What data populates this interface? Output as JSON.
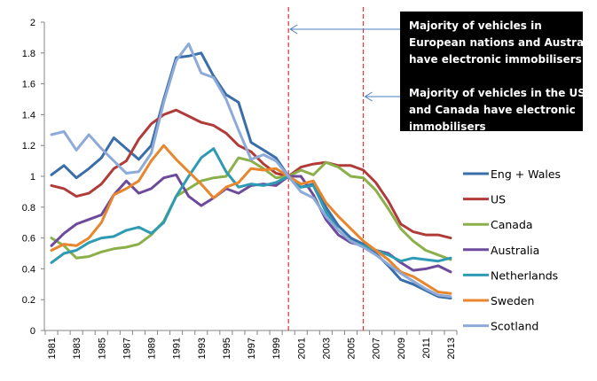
{
  "chart_data": {
    "type": "line",
    "title": "",
    "xlabel": "",
    "ylabel": "",
    "ylim": [
      0,
      2
    ],
    "yticks": [
      "0",
      "0.2",
      "0.4",
      "0.6",
      "0.8",
      "1",
      "1.2",
      "1.4",
      "1.6",
      "1.8",
      "2"
    ],
    "ytick_values": [
      0,
      0.2,
      0.4,
      0.6,
      0.8,
      1,
      1.2,
      1.4,
      1.6,
      1.8,
      2
    ],
    "x": [
      1981,
      1982,
      1983,
      1984,
      1985,
      1986,
      1987,
      1988,
      1989,
      1990,
      1991,
      1992,
      1993,
      1994,
      1995,
      1996,
      1997,
      1998,
      1999,
      2000,
      2001,
      2002,
      2003,
      2004,
      2005,
      2006,
      2007,
      2008,
      2009,
      2010,
      2011,
      2012,
      2013
    ],
    "xtick_labels": [
      "1981",
      "1983",
      "1985",
      "1987",
      "1989",
      "1991",
      "1993",
      "1995",
      "1997",
      "1999",
      "2001",
      "2003",
      "2005",
      "2007",
      "2009",
      "2011",
      "2013"
    ],
    "grid": false,
    "legend_position": "right",
    "series": [
      {
        "name": "Eng + Wales",
        "color": "#3a6ea8",
        "values": [
          1.01,
          1.07,
          0.99,
          1.05,
          1.12,
          1.25,
          1.18,
          1.11,
          1.2,
          1.5,
          1.77,
          1.78,
          1.8,
          1.65,
          1.53,
          1.48,
          1.22,
          1.17,
          1.12,
          1.0,
          0.93,
          0.95,
          0.8,
          0.68,
          0.6,
          0.56,
          0.5,
          0.42,
          0.33,
          0.3,
          0.26,
          0.22,
          0.21
        ]
      },
      {
        "name": "US",
        "color": "#b03c3a",
        "values": [
          0.94,
          0.92,
          0.87,
          0.89,
          0.95,
          1.05,
          1.1,
          1.24,
          1.34,
          1.4,
          1.43,
          1.39,
          1.35,
          1.33,
          1.28,
          1.2,
          1.16,
          1.08,
          1.02,
          1.0,
          1.06,
          1.08,
          1.09,
          1.07,
          1.07,
          1.04,
          0.96,
          0.84,
          0.69,
          0.64,
          0.62,
          0.62,
          0.6
        ]
      },
      {
        "name": "Canada",
        "color": "#8bb04a",
        "values": [
          0.6,
          0.55,
          0.47,
          0.48,
          0.51,
          0.53,
          0.54,
          0.56,
          0.62,
          0.71,
          0.87,
          0.92,
          0.97,
          0.99,
          1.0,
          1.12,
          1.1,
          1.05,
          0.99,
          1.0,
          1.04,
          1.01,
          1.09,
          1.06,
          1.0,
          0.99,
          0.91,
          0.79,
          0.66,
          0.58,
          0.52,
          0.49,
          0.46
        ]
      },
      {
        "name": "Australia",
        "color": "#6d4a9a",
        "values": [
          0.55,
          0.63,
          0.69,
          0.72,
          0.75,
          0.88,
          0.97,
          0.89,
          0.92,
          0.99,
          1.01,
          0.87,
          0.81,
          0.86,
          0.92,
          0.89,
          0.94,
          0.95,
          0.94,
          1.0,
          1.0,
          0.88,
          0.72,
          0.62,
          0.57,
          0.55,
          0.52,
          0.5,
          0.44,
          0.39,
          0.4,
          0.42,
          0.38
        ]
      },
      {
        "name": "Netherlands",
        "color": "#2e9bb4",
        "values": [
          0.44,
          0.5,
          0.52,
          0.57,
          0.6,
          0.61,
          0.65,
          0.67,
          0.63,
          0.7,
          0.87,
          1.0,
          1.12,
          1.18,
          1.03,
          0.93,
          0.95,
          0.94,
          0.96,
          1.0,
          0.93,
          0.94,
          0.77,
          0.65,
          0.58,
          0.55,
          0.52,
          0.49,
          0.45,
          0.47,
          0.46,
          0.45,
          0.47
        ]
      },
      {
        "name": "Sweden",
        "color": "#e8862e",
        "values": [
          0.52,
          0.56,
          0.55,
          0.6,
          0.7,
          0.88,
          0.92,
          0.97,
          1.1,
          1.2,
          1.11,
          1.03,
          0.95,
          0.86,
          0.93,
          0.96,
          1.05,
          1.04,
          1.05,
          1.0,
          0.95,
          0.97,
          0.83,
          0.74,
          0.66,
          0.58,
          0.52,
          0.46,
          0.38,
          0.35,
          0.3,
          0.25,
          0.24
        ]
      },
      {
        "name": "Scotland",
        "color": "#8eaad8",
        "values": [
          1.27,
          1.29,
          1.17,
          1.27,
          1.18,
          1.1,
          1.02,
          1.03,
          1.15,
          1.48,
          1.75,
          1.86,
          1.67,
          1.64,
          1.5,
          1.3,
          1.11,
          1.14,
          1.1,
          1.0,
          0.9,
          0.86,
          0.74,
          0.65,
          0.58,
          0.54,
          0.49,
          0.43,
          0.37,
          0.32,
          0.27,
          0.23,
          0.22
        ]
      }
    ],
    "reference_lines": [
      {
        "x": 2000,
        "color": "#e03030",
        "style": "dashed"
      },
      {
        "x": 2006,
        "color": "#e03030",
        "style": "dashed"
      }
    ],
    "annotations": [
      {
        "points_to_x": 2000,
        "lines": [
          "Majority of vehicles in",
          "European nations and Australia",
          "have electronic immobilisers"
        ]
      },
      {
        "points_to_x": 2006,
        "lines": [
          "Majority of vehicles in the US",
          "and Canada have electronic",
          "immobilisers"
        ]
      }
    ],
    "annotation_box_color": "#000000",
    "arrow_color": "#4a7cc0"
  }
}
